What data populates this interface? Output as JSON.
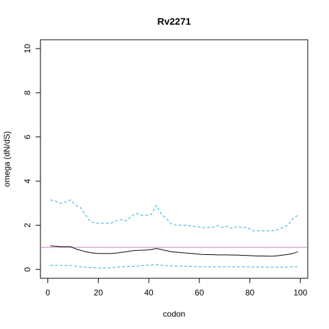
{
  "chart_data": {
    "type": "line",
    "title": "Rv2271",
    "x_label": "codon",
    "y_label": "omega (dN/dS)",
    "x": [
      1,
      3,
      5,
      7,
      9,
      11,
      13,
      15,
      17,
      19,
      21,
      23,
      25,
      27,
      29,
      31,
      33,
      35,
      37,
      39,
      41,
      43,
      45,
      47,
      49,
      51,
      53,
      55,
      57,
      59,
      61,
      63,
      65,
      67,
      69,
      71,
      73,
      75,
      77,
      79,
      81,
      83,
      85,
      87,
      89,
      91,
      93,
      95,
      97,
      99
    ],
    "series": [
      {
        "color": "#000000",
        "linestyle": "solid",
        "values": [
          1.07,
          1.05,
          1.03,
          1.03,
          1.03,
          0.93,
          0.87,
          0.8,
          0.76,
          0.73,
          0.72,
          0.72,
          0.72,
          0.74,
          0.77,
          0.8,
          0.84,
          0.86,
          0.87,
          0.88,
          0.9,
          0.95,
          0.9,
          0.85,
          0.8,
          0.78,
          0.76,
          0.74,
          0.72,
          0.7,
          0.68,
          0.67,
          0.67,
          0.66,
          0.66,
          0.66,
          0.65,
          0.65,
          0.64,
          0.63,
          0.62,
          0.61,
          0.61,
          0.6,
          0.6,
          0.62,
          0.65,
          0.68,
          0.72,
          0.8
        ]
      },
      {
        "color": "#29a8e0",
        "linestyle": "dashed",
        "values": [
          3.15,
          3.1,
          3.0,
          3.05,
          3.15,
          2.9,
          2.8,
          2.45,
          2.15,
          2.1,
          2.1,
          2.1,
          2.1,
          2.2,
          2.25,
          2.2,
          2.4,
          2.55,
          2.45,
          2.45,
          2.5,
          2.9,
          2.5,
          2.3,
          2.05,
          2.0,
          2.0,
          2.0,
          1.95,
          1.95,
          1.9,
          1.9,
          1.9,
          2.0,
          1.9,
          1.95,
          1.85,
          1.95,
          1.9,
          1.9,
          1.75,
          1.75,
          1.75,
          1.75,
          1.75,
          1.8,
          1.9,
          2.0,
          2.3,
          2.45
        ]
      },
      {
        "color": "#29a8e0",
        "linestyle": "dashed",
        "values": [
          0.18,
          0.18,
          0.18,
          0.18,
          0.18,
          0.15,
          0.12,
          0.1,
          0.08,
          0.07,
          0.07,
          0.07,
          0.08,
          0.1,
          0.12,
          0.13,
          0.14,
          0.15,
          0.17,
          0.19,
          0.2,
          0.21,
          0.19,
          0.17,
          0.16,
          0.15,
          0.15,
          0.15,
          0.14,
          0.13,
          0.12,
          0.12,
          0.12,
          0.12,
          0.12,
          0.12,
          0.12,
          0.12,
          0.12,
          0.12,
          0.11,
          0.11,
          0.11,
          0.1,
          0.1,
          0.1,
          0.1,
          0.11,
          0.12,
          0.12
        ]
      }
    ],
    "hline": {
      "value": 1,
      "color": "#c77cc7"
    },
    "xlim": [
      -2.92,
      102.92
    ],
    "ylim": [
      -0.4,
      10.4
    ],
    "xticks": [
      0,
      20,
      40,
      60,
      80,
      100
    ],
    "yticks": [
      0,
      2,
      4,
      6,
      8,
      10
    ]
  }
}
